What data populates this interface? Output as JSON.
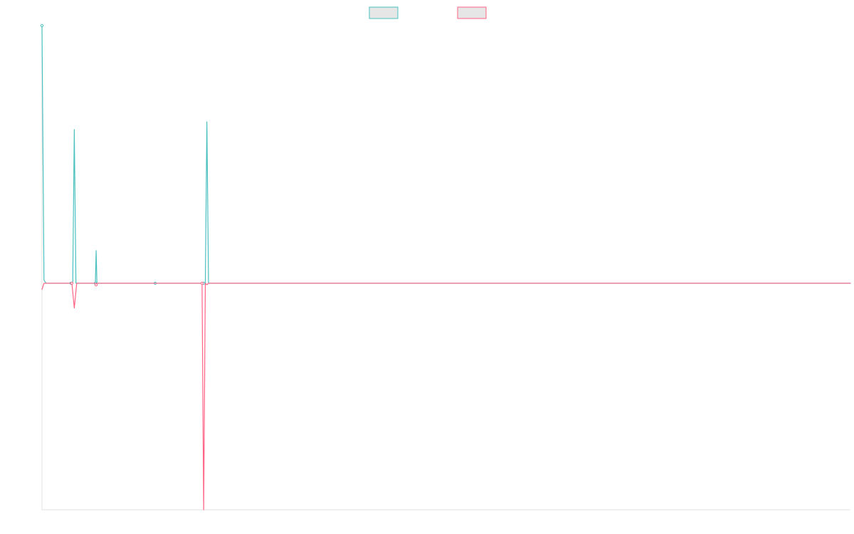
{
  "chart_data": {
    "type": "line",
    "legend_position": "top-center",
    "grid": false,
    "xlim": [
      0,
      1000
    ],
    "ylim": [
      -7.3,
      8.3
    ],
    "series": [
      {
        "name": "",
        "color": "#4bc0c0",
        "points": [
          [
            0,
            8.3
          ],
          [
            2.5,
            0.1
          ],
          [
            5,
            0.0
          ],
          [
            15,
            0.0
          ],
          [
            25,
            0.0
          ],
          [
            35,
            0.0
          ],
          [
            36,
            0.0
          ],
          [
            38,
            0.0
          ],
          [
            40,
            4.95
          ],
          [
            42,
            0.0
          ],
          [
            55,
            0.0
          ],
          [
            66,
            0.0
          ],
          [
            67,
            1.05
          ],
          [
            68,
            0.0
          ],
          [
            80,
            0.0
          ],
          [
            140,
            0.0
          ],
          [
            200,
            0.0
          ],
          [
            202,
            0.0
          ],
          [
            204,
            5.2
          ],
          [
            206,
            0.0
          ],
          [
            300,
            0.0
          ],
          [
            500,
            0.0
          ],
          [
            700,
            0.0
          ],
          [
            900,
            0.0
          ],
          [
            1000,
            0.0
          ]
        ],
        "markers": [
          0,
          36,
          66,
          140,
          200
        ]
      },
      {
        "name": "",
        "color": "#ff6384",
        "points": [
          [
            0,
            -0.2
          ],
          [
            2.5,
            0.0
          ],
          [
            5,
            0.0
          ],
          [
            15,
            0.0
          ],
          [
            25,
            0.0
          ],
          [
            35,
            0.0
          ],
          [
            37,
            0.0
          ],
          [
            40,
            -0.8
          ],
          [
            43,
            0.0
          ],
          [
            55,
            0.0
          ],
          [
            66,
            0.0
          ],
          [
            67,
            -0.05
          ],
          [
            68,
            0.0
          ],
          [
            80,
            0.0
          ],
          [
            140,
            0.0
          ],
          [
            198,
            0.0
          ],
          [
            200,
            -7.3
          ],
          [
            202,
            0.0
          ],
          [
            204,
            -0.05
          ],
          [
            206,
            0.0
          ],
          [
            300,
            0.0
          ],
          [
            500,
            0.0
          ],
          [
            700,
            0.0
          ],
          [
            900,
            0.0
          ],
          [
            1000,
            0.0
          ]
        ],
        "markers": [
          37,
          67,
          198
        ]
      }
    ]
  }
}
